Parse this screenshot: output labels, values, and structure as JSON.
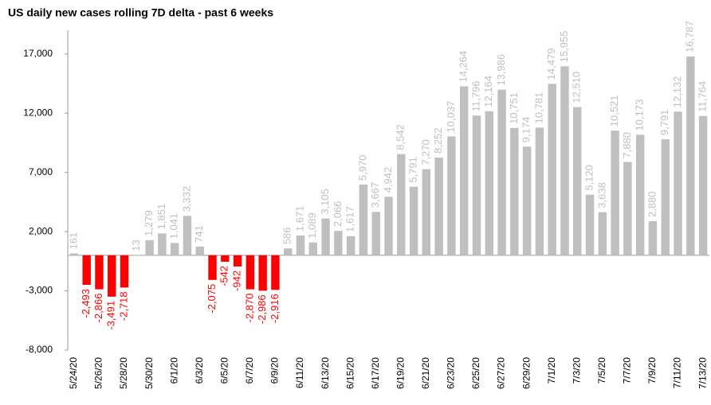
{
  "chart_data": {
    "type": "bar",
    "title": "US daily new cases rolling 7D delta - past 6 weeks",
    "categories": [
      "5/24/20",
      null,
      "5/26/20",
      null,
      "5/28/20",
      null,
      "5/30/20",
      null,
      "6/1/20",
      null,
      "6/3/20",
      null,
      "6/5/20",
      null,
      "6/7/20",
      null,
      "6/9/20",
      null,
      "6/11/20",
      null,
      "6/13/20",
      null,
      "6/15/20",
      null,
      "6/17/20",
      null,
      "6/19/20",
      null,
      "6/21/20",
      null,
      "6/23/20",
      null,
      "6/25/20",
      null,
      "6/27/20",
      null,
      "6/29/20",
      null,
      "7/1/20",
      null,
      "7/3/20",
      null,
      "7/5/20",
      null,
      "7/7/20",
      null,
      "7/9/20",
      null,
      "7/11/20",
      null,
      "7/13/20"
    ],
    "values": [
      161,
      -2493,
      -2866,
      -3491,
      -2718,
      13,
      1279,
      1851,
      1041,
      3332,
      741,
      -2075,
      -542,
      -942,
      -2870,
      -2986,
      -2916,
      586,
      1671,
      1089,
      3105,
      2066,
      1617,
      5970,
      3667,
      4942,
      8542,
      5791,
      7270,
      8252,
      10037,
      14264,
      11796,
      12164,
      13986,
      10751,
      9174,
      10781,
      14479,
      15955,
      12510,
      5120,
      3638,
      10521,
      7880,
      10173,
      2880,
      9791,
      12132,
      16787,
      11764
    ],
    "value_labels": [
      "161",
      "-2,493",
      "-2,866",
      "-3,491",
      "-2,718",
      "13",
      "1,279",
      "1,851",
      "1,041",
      "3,332",
      "741",
      "-2,075",
      "-542",
      "-942",
      "-2,870",
      "-2,986",
      "-2,916",
      "586",
      "1,671",
      "1,089",
      "3,105",
      "2,066",
      "1,617",
      "5,970",
      "3,667",
      "4,942",
      "8,542",
      "5,791",
      "7,270",
      "8,252",
      "10,037",
      "14,264",
      "11,796",
      "12,164",
      "13,986",
      "10,751",
      "9,174",
      "10,781",
      "14,479",
      "15,955",
      "12,510",
      "5,120",
      "3,638",
      "10,521",
      "7,880",
      "10,173",
      "2,880",
      "9,791",
      "12,132",
      "16,787",
      "11,764"
    ],
    "positive_color": "#bfbfbf",
    "negative_color": "#ff0000",
    "ylim": [
      -8000,
      19000
    ],
    "yticks": [
      {
        "value": -8000,
        "label": "-8,000"
      },
      {
        "value": -3000,
        "label": "-3,000"
      },
      {
        "value": 2000,
        "label": "2,000"
      },
      {
        "value": 7000,
        "label": "7,000"
      },
      {
        "value": 12000,
        "label": "12,000"
      },
      {
        "value": 17000,
        "label": "17,000"
      }
    ],
    "grid": false
  }
}
